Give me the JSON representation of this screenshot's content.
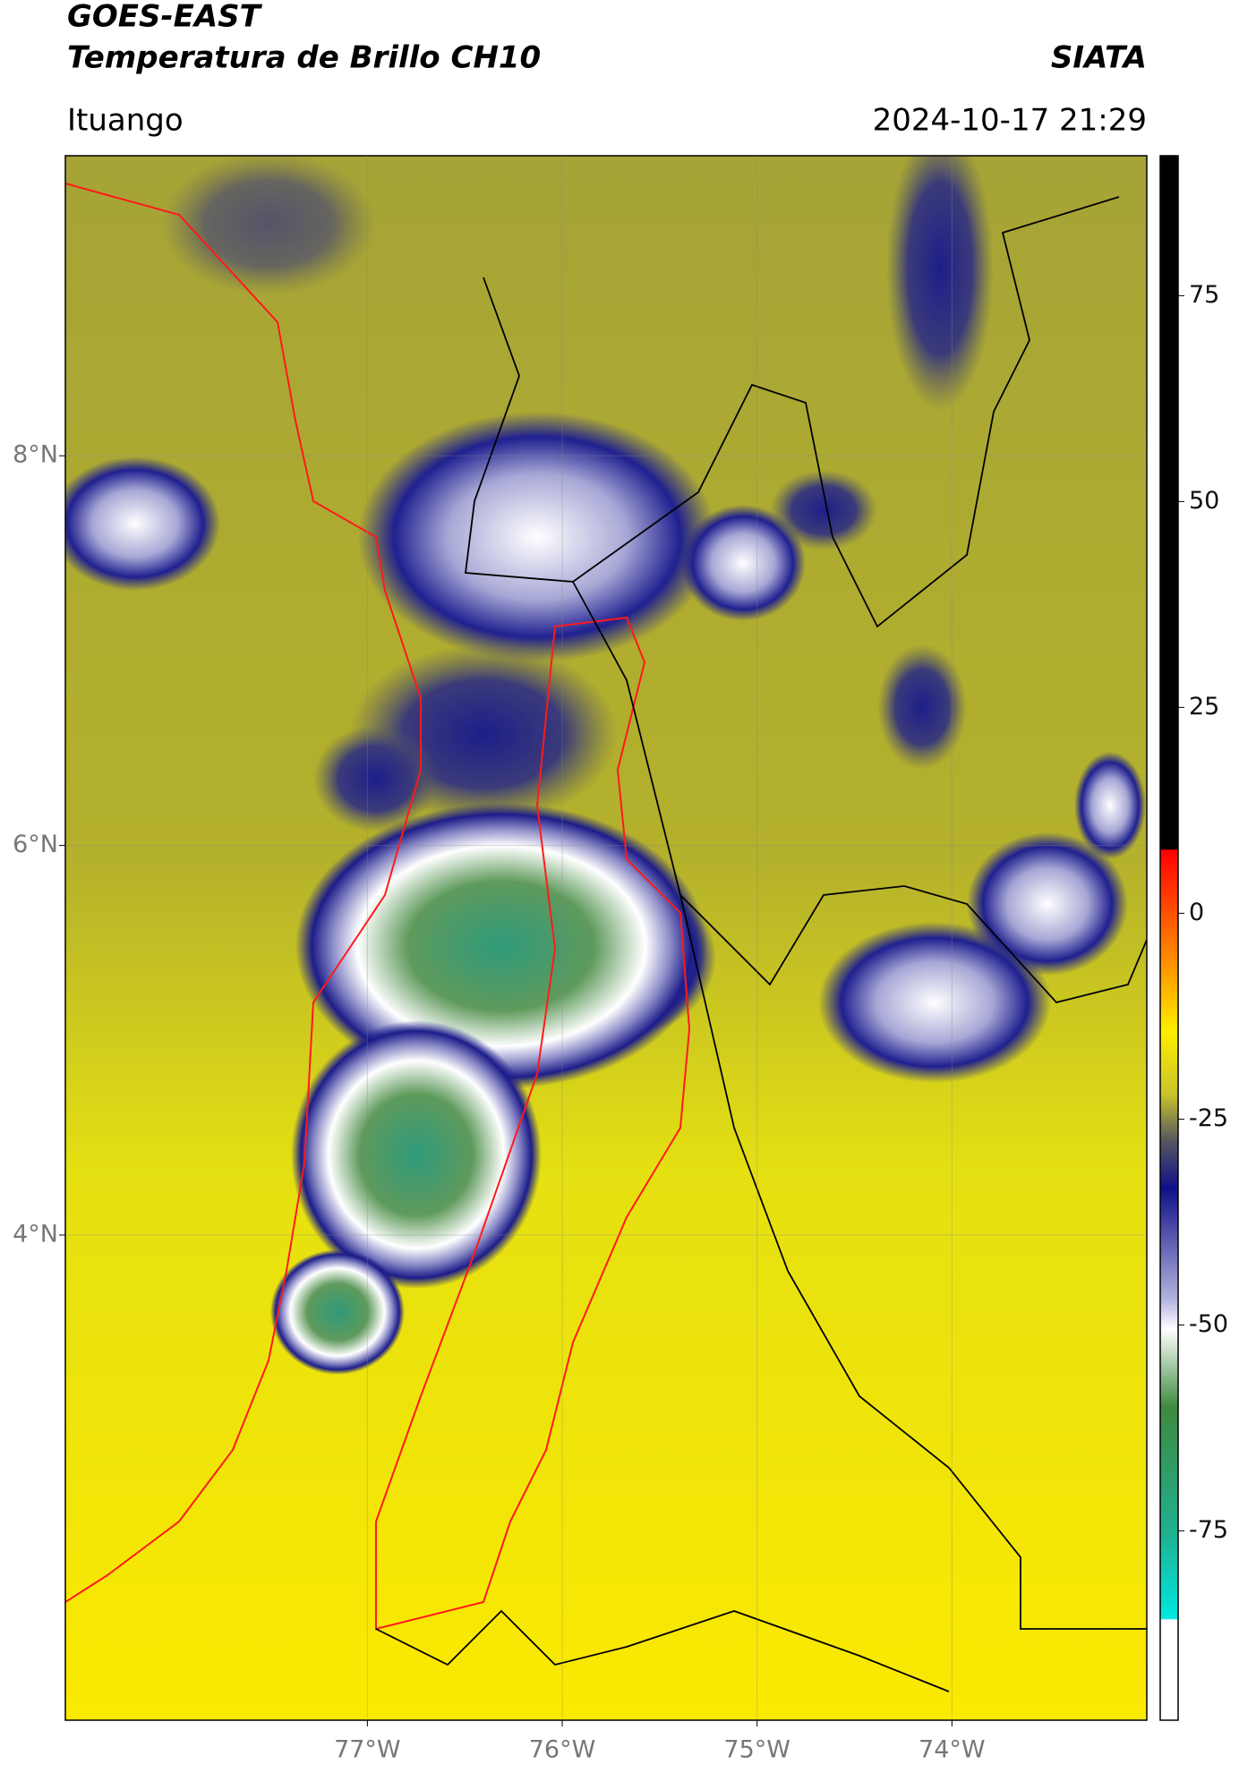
{
  "header": {
    "title": "GOES-EAST",
    "subtitle": "Temperatura de Brillo CH10",
    "source": "SIATA",
    "location": "Ituango",
    "datetime": "2024-10-17 21:29"
  },
  "map": {
    "xlim": [
      -78.55,
      -73.0
    ],
    "ylim": [
      1.51,
      9.54
    ],
    "xticks": [
      {
        "value": -77,
        "label": "77°W"
      },
      {
        "value": -76,
        "label": "76°W"
      },
      {
        "value": -75,
        "label": "75°W"
      },
      {
        "value": -74,
        "label": "74°W"
      }
    ],
    "yticks": [
      {
        "value": 4,
        "label": "4°N"
      },
      {
        "value": 6,
        "label": "6°N"
      },
      {
        "value": 8,
        "label": "8°N"
      }
    ]
  },
  "colorbar": {
    "lim": [
      -98,
      92
    ],
    "ticks": [
      -75,
      -50,
      -25,
      0,
      25,
      50,
      75
    ]
  }
}
